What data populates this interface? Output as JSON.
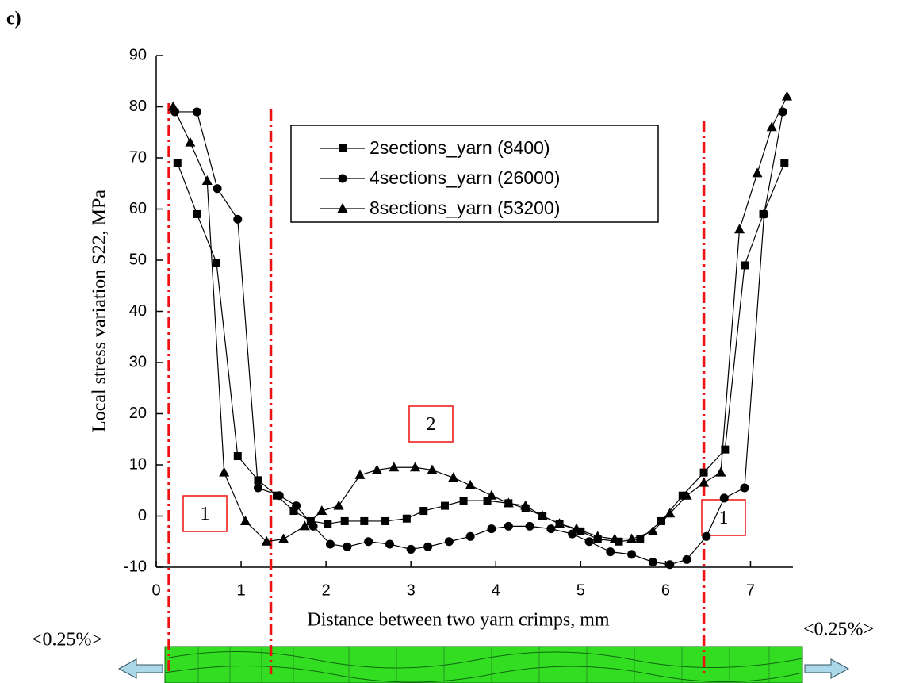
{
  "panel_label": "c)",
  "chart_data": {
    "type": "line",
    "x_label": "Distance between two yarn crimps, mm",
    "y_label": "Local stress variation S22, MPa",
    "xlim": [
      0,
      7.5
    ],
    "ylim": [
      -10,
      90
    ],
    "xticks": [
      0,
      1,
      2,
      3,
      4,
      5,
      6,
      7
    ],
    "yticks": [
      -10,
      0,
      10,
      20,
      30,
      40,
      50,
      60,
      70,
      80,
      90
    ],
    "series": [
      {
        "name": "2sections_yarn (8400)",
        "marker": "square",
        "color": "#000000",
        "x": [
          0.25,
          0.48,
          0.71,
          0.96,
          1.2,
          1.42,
          1.62,
          1.82,
          2.02,
          2.22,
          2.45,
          2.7,
          2.95,
          3.15,
          3.4,
          3.62,
          3.9,
          4.15,
          4.35,
          4.55,
          4.75,
          5.0,
          5.2,
          5.45,
          5.7,
          5.95,
          6.2,
          6.45,
          6.7,
          6.93,
          7.15,
          7.4
        ],
        "values": [
          69,
          59,
          49.5,
          11.7,
          7,
          4,
          1,
          -1,
          -1.5,
          -1,
          -1,
          -1,
          -0.5,
          1,
          2,
          3,
          3,
          2.5,
          1.5,
          0,
          -1.5,
          -3,
          -4.5,
          -5,
          -4.5,
          -1,
          4,
          8.5,
          13,
          49,
          59,
          69
        ]
      },
      {
        "name": "4sections_yarn (26000)",
        "marker": "circle",
        "color": "#000000",
        "x": [
          0.22,
          0.48,
          0.72,
          0.96,
          1.2,
          1.45,
          1.65,
          1.85,
          2.05,
          2.25,
          2.5,
          2.75,
          3.0,
          3.2,
          3.45,
          3.7,
          3.95,
          4.15,
          4.4,
          4.65,
          4.9,
          5.1,
          5.35,
          5.6,
          5.85,
          6.05,
          6.25,
          6.48,
          6.69,
          6.93,
          7.16,
          7.38
        ],
        "values": [
          79,
          79,
          64,
          58,
          5.5,
          4,
          2,
          -2,
          -5.5,
          -6,
          -5,
          -5.5,
          -6.5,
          -6,
          -5,
          -4,
          -2.5,
          -2,
          -2,
          -2.5,
          -3.5,
          -5,
          -7,
          -7.5,
          -9,
          -9.5,
          -8.5,
          -4,
          3.5,
          5.5,
          59,
          79
        ]
      },
      {
        "name": "8sections_yarn (53200)",
        "marker": "triangle",
        "color": "#000000",
        "x": [
          0.2,
          0.4,
          0.6,
          0.8,
          1.05,
          1.3,
          1.5,
          1.75,
          1.95,
          2.15,
          2.4,
          2.6,
          2.8,
          3.05,
          3.25,
          3.5,
          3.7,
          3.95,
          4.15,
          4.35,
          4.55,
          4.75,
          4.95,
          5.2,
          5.4,
          5.6,
          5.85,
          6.05,
          6.25,
          6.45,
          6.65,
          6.87,
          7.08,
          7.25,
          7.43
        ],
        "values": [
          80,
          73,
          65.5,
          8.5,
          -1,
          -5,
          -4.5,
          -2,
          1,
          2,
          8,
          9,
          9.5,
          9.5,
          9,
          7.5,
          6,
          4,
          2.5,
          2,
          0,
          -1.5,
          -2.5,
          -4,
          -4.5,
          -4.5,
          -3,
          0.5,
          4,
          6.5,
          8.5,
          56,
          67,
          76,
          82
        ]
      }
    ],
    "reference_lines": {
      "color": "#ee1111",
      "x": [
        0.15,
        1.35,
        6.45
      ]
    },
    "annotations": [
      "1",
      "2",
      "1"
    ],
    "load_labels": [
      "<0.25%>",
      "<0.25%>"
    ]
  }
}
